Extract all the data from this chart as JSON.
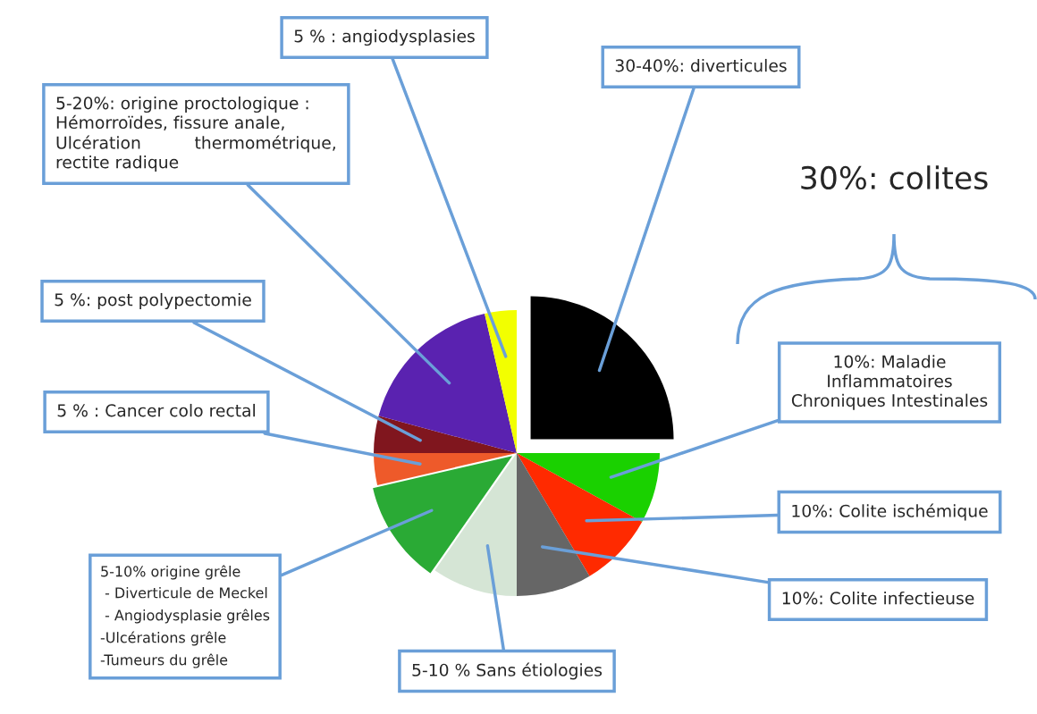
{
  "chart_data": {
    "type": "pie",
    "categories": [
      "30-40%: diverticules",
      "10%: Maladie\nInflammatoires\nChroniques Intestinales",
      "10%: Colite ischémique",
      "10%: Colite infectieuse",
      "5-10 % Sans étiologies",
      "5-10% origine grêle\n - Diverticule de Meckel\n - Angiodysplasie grêles\n-Ulcérations grêle\n-Tumeurs du grêle",
      "5 % : Cancer colo rectal",
      "5 %: post polypectomie",
      "5-20%: origine proctologique :\nHémorroïdes, fissure anale,\nUlcération          thermométrique,\nrectite radique",
      "5 % : angiodysplasies"
    ],
    "values": [
      25,
      8,
      8.5,
      8.5,
      9.7,
      11.7,
      3.6,
      4.2,
      17.2,
      3.6
    ],
    "colors": [
      "#000000",
      "#1ad100",
      "#ff2a00",
      "#666666",
      "#d5e5d5",
      "#2aaa35",
      "#ee5a2a",
      "#80161e",
      "#5a22b0",
      "#f2ff00"
    ],
    "annotations": [
      "30%: colites"
    ],
    "legend": false
  }
}
